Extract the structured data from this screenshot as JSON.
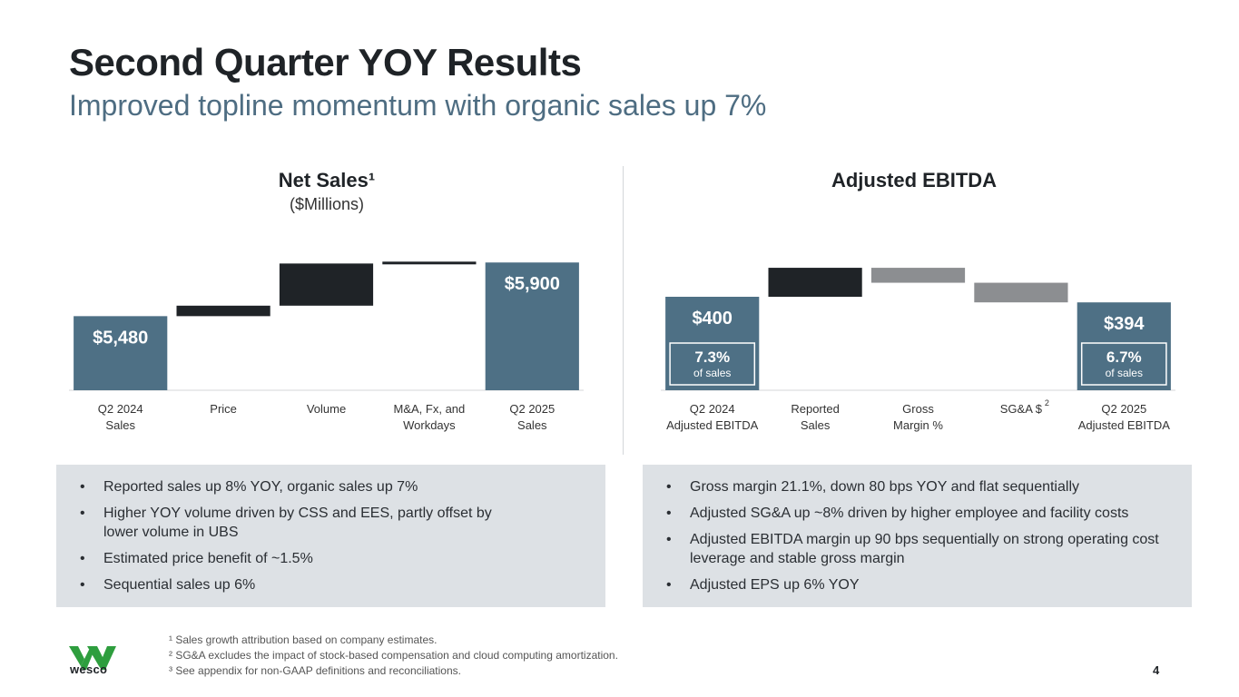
{
  "header": {
    "title": "Second Quarter YOY Results",
    "subtitle": "Improved topline momentum with organic sales up 7%"
  },
  "chart_data": [
    {
      "type": "bar",
      "subtype": "waterfall",
      "title": "Net Sales¹",
      "unit": "($Millions)",
      "categories": [
        "Q2 2024\nSales",
        "Price",
        "Volume",
        "M&A, Fx, and\nWorkdays",
        "Q2 2025\nSales"
      ],
      "bars": [
        {
          "kind": "total",
          "value": 5480,
          "label": "$5,480",
          "color": "#4e7085"
        },
        {
          "kind": "delta",
          "value": 82,
          "color": "#1f2327"
        },
        {
          "kind": "delta",
          "value": 330,
          "color": "#1f2327"
        },
        {
          "kind": "delta",
          "value": 8,
          "color": "#1f2327"
        },
        {
          "kind": "total",
          "value": 5900,
          "label": "$5,900",
          "color": "#4e7085"
        }
      ],
      "ylim": [
        0,
        6200
      ]
    },
    {
      "type": "bar",
      "subtype": "waterfall",
      "title": "Adjusted EBITDA",
      "categories": [
        "Q2 2024\nAdjusted EBITDA",
        "Reported\nSales",
        "Gross\nMargin %",
        "SG&A $",
        "Q2 2025\nAdjusted EBITDA"
      ],
      "category_superscripts": [
        "",
        "",
        "",
        "2",
        ""
      ],
      "bars": [
        {
          "kind": "total",
          "value": 400,
          "label": "$400",
          "sub_value": "7.3%",
          "sub_label": "of sales",
          "color": "#4e7085"
        },
        {
          "kind": "delta",
          "value": 31,
          "color": "#1f2327"
        },
        {
          "kind": "delta",
          "value": -16,
          "color": "#8c8e91"
        },
        {
          "kind": "delta",
          "value": -21,
          "color": "#8c8e91"
        },
        {
          "kind": "total",
          "value": 394,
          "label": "$394",
          "sub_value": "6.7%",
          "sub_label": "of sales",
          "color": "#4e7085"
        }
      ],
      "ylim": [
        0,
        500
      ]
    }
  ],
  "left_box": {
    "bullets": [
      "Reported sales up 8% YOY, organic sales up 7%",
      "Higher YOY volume driven by CSS and EES, partly offset by lower volume in UBS",
      "Estimated price benefit of ~1.5%",
      "Sequential sales up 6%"
    ]
  },
  "right_box": {
    "bullets": [
      "Gross margin 21.1%, down 80 bps YOY and flat sequentially",
      "Adjusted SG&A up ~8% driven by higher employee and facility costs",
      "Adjusted EBITDA margin up 90 bps sequentially on strong operating cost leverage and stable gross margin",
      "Adjusted EPS up 6% YOY"
    ]
  },
  "footer": {
    "logo_text": "wesco",
    "footnotes": [
      "¹ Sales growth attribution based on company estimates.",
      "² SG&A excludes the impact of stock-based compensation and cloud computing amortization.",
      "³ See appendix for non-GAAP definitions and reconciliations."
    ],
    "page_number": "4"
  }
}
